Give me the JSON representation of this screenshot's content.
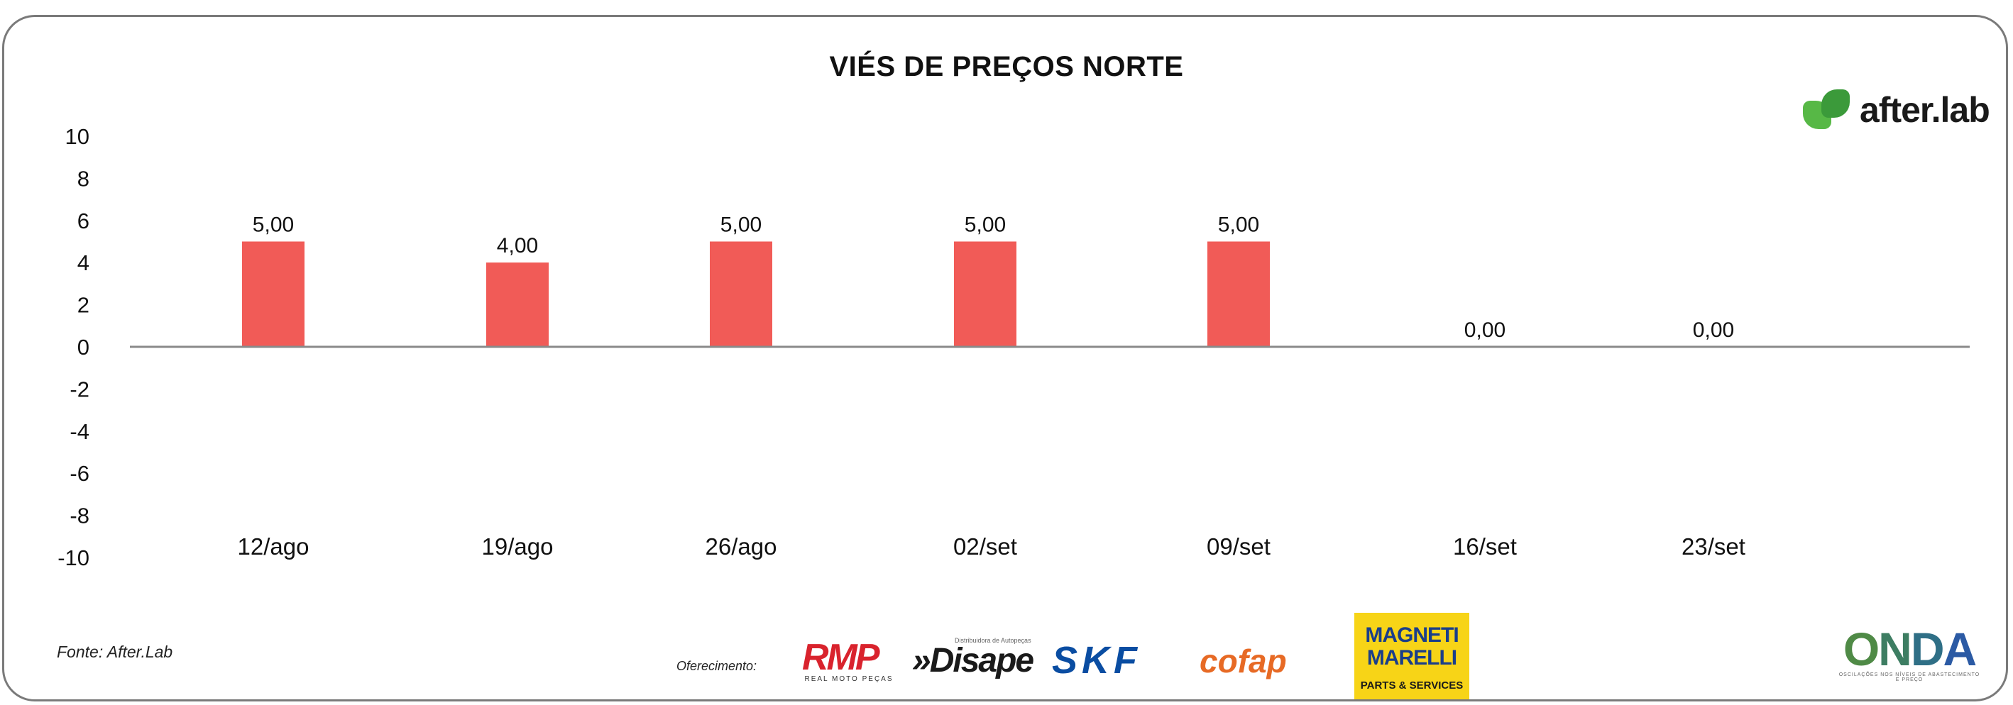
{
  "chart_data": {
    "type": "bar",
    "title": "VIÉS DE PREÇOS NORTE",
    "xlabel": "",
    "ylabel": "",
    "categories": [
      "12/ago",
      "19/ago",
      "26/ago",
      "02/set",
      "09/set",
      "16/set",
      "23/set"
    ],
    "values": [
      5,
      4,
      5,
      5,
      5,
      0,
      0
    ],
    "data_labels": [
      "5,00",
      "4,00",
      "5,00",
      "5,00",
      "5,00",
      "0,00",
      "0,00"
    ],
    "ylim": [
      -10,
      10
    ],
    "y_ticks": [
      10,
      8,
      6,
      4,
      2,
      0,
      -2,
      -4,
      -6,
      -8,
      -10
    ],
    "grid": false,
    "legend": "none",
    "bar_color": "#f15b57"
  },
  "footer": {
    "source": "Fonte: After.Lab",
    "sponsor_label": "Oferecimento:"
  },
  "logos": {
    "afterlab": "after.lab",
    "rmp": "RMP",
    "rmp_sub": "REAL MOTO PEÇAS",
    "disape_tag": "Distribuidora de Autopeças",
    "disape": "»Disape",
    "skf": "SKF",
    "cofap": "cofap",
    "magneti_1": "MAGNETI",
    "magneti_2": "MARELLI",
    "magneti_sub": "PARTS & SERVICES",
    "onda": "ONDA",
    "onda_sub": "OSCILAÇÕES NOS NÍVEIS DE ABASTECIMENTO E PREÇO"
  }
}
